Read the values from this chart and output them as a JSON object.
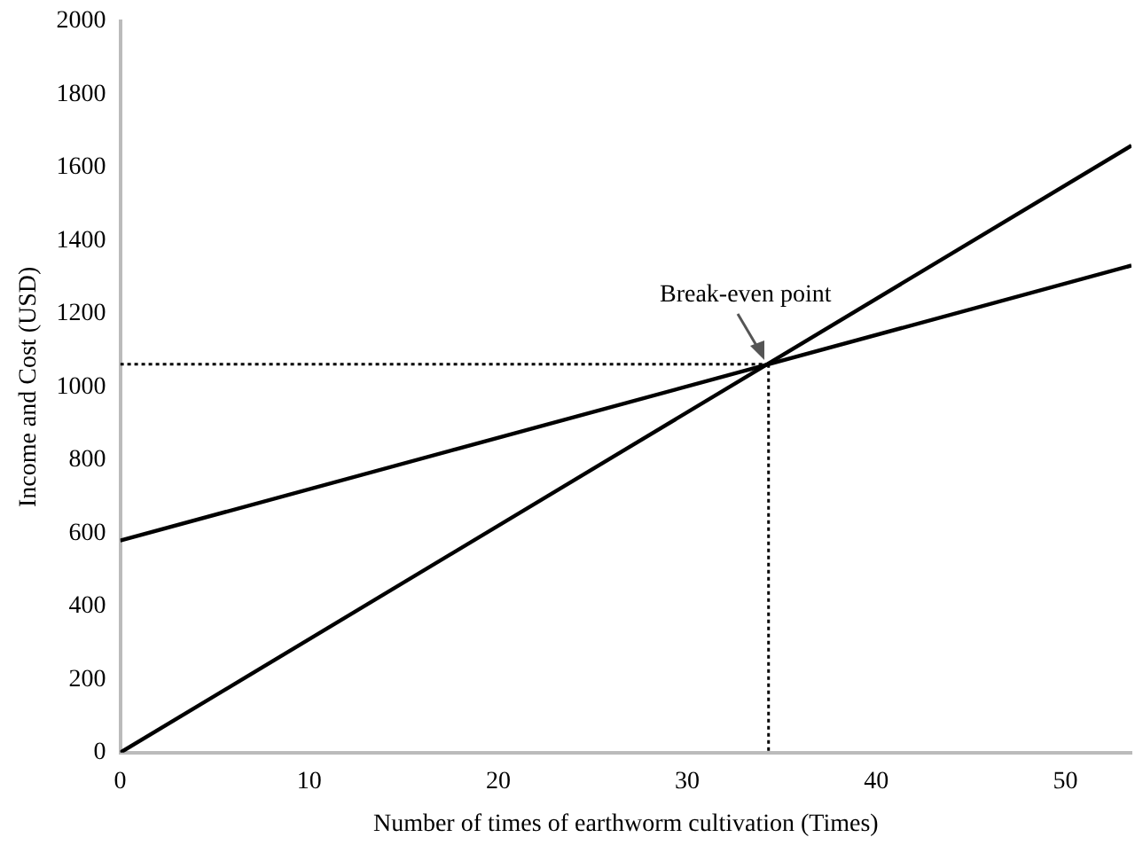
{
  "chart_data": {
    "type": "line",
    "xlabel": "Number of times of earthworm cultivation (Times)",
    "ylabel": "Income and Cost (USD)",
    "xlim": [
      0,
      53.5
    ],
    "xticks": [
      0,
      10,
      20,
      30,
      40,
      50
    ],
    "ylim": [
      0,
      2000
    ],
    "yticks": [
      0,
      200,
      400,
      600,
      800,
      1000,
      1200,
      1400,
      1600,
      1800,
      2000
    ],
    "grid": false,
    "legend": false,
    "marker": "none",
    "series": [
      {
        "color": "#000000",
        "x": [
          0,
          53.5
        ],
        "values": [
          0,
          1660
        ]
      },
      {
        "color": "#000000",
        "x": [
          0,
          53.5
        ],
        "values": [
          580,
          1332
        ]
      },
      {
        "color": "#000000",
        "line_style": "dotted",
        "x": [
          0,
          34.3
        ],
        "values": [
          1062,
          1062
        ]
      },
      {
        "color": "#000000",
        "line_style": "dotted",
        "x": [
          34.3,
          34.3
        ],
        "values": [
          1062,
          0
        ]
      }
    ],
    "annotations": [
      {
        "text": "Break-even point",
        "x": 34.3,
        "y": 1062
      }
    ]
  }
}
